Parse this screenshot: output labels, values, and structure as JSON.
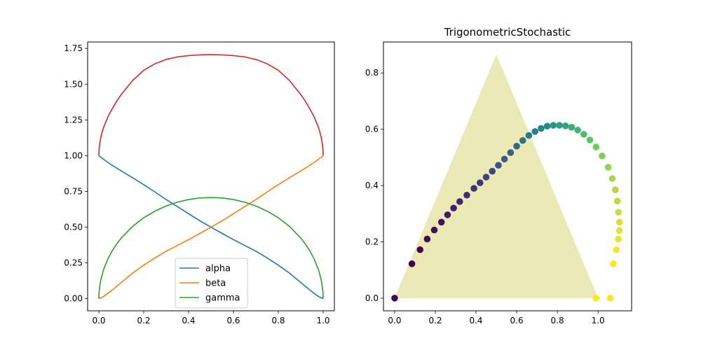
{
  "chart_data": [
    {
      "type": "line",
      "title": "",
      "xlabel": "",
      "ylabel": "",
      "xlim": [
        -0.05,
        1.05
      ],
      "ylim": [
        -0.085,
        1.795
      ],
      "xticks": [
        0.0,
        0.2,
        0.4,
        0.6,
        0.8,
        1.0
      ],
      "yticks": [
        0.0,
        0.25,
        0.5,
        0.75,
        1.0,
        1.25,
        1.5,
        1.75
      ],
      "xtick_labels": [
        "0.0",
        "0.2",
        "0.4",
        "0.6",
        "0.8",
        "1.0"
      ],
      "ytick_labels": [
        "0.00",
        "0.25",
        "0.50",
        "0.75",
        "1.00",
        "1.25",
        "1.50",
        "1.75"
      ],
      "grid": false,
      "legend_position": "lower-center",
      "x": [
        0.0,
        0.001,
        0.005,
        0.01,
        0.02,
        0.04,
        0.06,
        0.08,
        0.1,
        0.15,
        0.2,
        0.25,
        0.3,
        0.35,
        0.4,
        0.45,
        0.5,
        0.55,
        0.6,
        0.65,
        0.7,
        0.75,
        0.8,
        0.85,
        0.9,
        0.92,
        0.94,
        0.96,
        0.98,
        0.99,
        0.995,
        0.999,
        1.0
      ],
      "series": [
        {
          "name": "alpha",
          "color": "#1f77b4",
          "values": [
            1.0,
            0.998,
            0.994,
            0.988,
            0.976,
            0.953,
            0.932,
            0.912,
            0.893,
            0.846,
            0.797,
            0.746,
            0.693,
            0.644,
            0.594,
            0.545,
            0.5,
            0.456,
            0.413,
            0.372,
            0.332,
            0.285,
            0.234,
            0.178,
            0.113,
            0.087,
            0.061,
            0.037,
            0.014,
            0.007,
            0.003,
            0.001,
            0.0
          ]
        },
        {
          "name": "beta",
          "color": "#ff7f0e",
          "values": [
            0.0,
            0.001,
            0.003,
            0.007,
            0.014,
            0.037,
            0.061,
            0.087,
            0.113,
            0.178,
            0.234,
            0.285,
            0.332,
            0.372,
            0.413,
            0.456,
            0.5,
            0.545,
            0.594,
            0.644,
            0.693,
            0.746,
            0.797,
            0.846,
            0.893,
            0.912,
            0.932,
            0.953,
            0.976,
            0.988,
            0.994,
            0.998,
            1.0
          ]
        },
        {
          "name": "gamma",
          "color": "#2ca02c",
          "values": [
            0.0,
            0.044,
            0.099,
            0.14,
            0.198,
            0.277,
            0.336,
            0.384,
            0.424,
            0.505,
            0.566,
            0.612,
            0.648,
            0.675,
            0.693,
            0.704,
            0.707,
            0.704,
            0.693,
            0.675,
            0.648,
            0.612,
            0.566,
            0.505,
            0.424,
            0.384,
            0.336,
            0.277,
            0.198,
            0.14,
            0.099,
            0.044,
            0.0
          ]
        },
        {
          "name": "",
          "color": "#d62728",
          "values": [
            1.0,
            1.043,
            1.096,
            1.136,
            1.194,
            1.27,
            1.329,
            1.382,
            1.428,
            1.525,
            1.597,
            1.643,
            1.673,
            1.691,
            1.7,
            1.705,
            1.707,
            1.705,
            1.7,
            1.691,
            1.673,
            1.643,
            1.597,
            1.525,
            1.428,
            1.382,
            1.329,
            1.27,
            1.194,
            1.136,
            1.096,
            1.043,
            1.0
          ]
        }
      ]
    },
    {
      "type": "scatter",
      "title": "TrigonometricStochastic",
      "xlabel": "",
      "ylabel": "",
      "xlim": [
        -0.055,
        1.165
      ],
      "ylim": [
        -0.045,
        0.91
      ],
      "xticks": [
        0.0,
        0.2,
        0.4,
        0.6,
        0.8,
        1.0
      ],
      "yticks": [
        0.0,
        0.2,
        0.4,
        0.6,
        0.8
      ],
      "xtick_labels": [
        "0.0",
        "0.2",
        "0.4",
        "0.6",
        "0.8",
        "1.0"
      ],
      "ytick_labels": [
        "0.0",
        "0.2",
        "0.4",
        "0.6",
        "0.8"
      ],
      "grid": false,
      "triangle": {
        "vertices": [
          [
            0.0,
            0.0
          ],
          [
            1.0,
            0.0
          ],
          [
            0.5,
            0.866
          ]
        ],
        "color": "#ebe9b6"
      },
      "colormap": "viridis",
      "points": {
        "x": [
          0.0,
          0.085,
          0.125,
          0.16,
          0.195,
          0.23,
          0.26,
          0.29,
          0.32,
          0.355,
          0.39,
          0.42,
          0.45,
          0.48,
          0.51,
          0.54,
          0.57,
          0.6,
          0.63,
          0.66,
          0.69,
          0.72,
          0.75,
          0.78,
          0.81,
          0.84,
          0.87,
          0.9,
          0.93,
          0.96,
          0.99,
          1.02,
          1.05,
          1.07,
          1.085,
          1.095,
          1.1,
          1.105,
          1.105,
          1.1,
          1.09,
          1.075,
          1.06,
          0.99
        ],
        "y": [
          0.0,
          0.122,
          0.172,
          0.21,
          0.242,
          0.27,
          0.296,
          0.32,
          0.343,
          0.366,
          0.39,
          0.41,
          0.43,
          0.451,
          0.472,
          0.494,
          0.517,
          0.54,
          0.56,
          0.578,
          0.592,
          0.603,
          0.611,
          0.614,
          0.614,
          0.612,
          0.607,
          0.597,
          0.582,
          0.562,
          0.537,
          0.505,
          0.465,
          0.425,
          0.385,
          0.345,
          0.305,
          0.27,
          0.24,
          0.21,
          0.172,
          0.122,
          0.0,
          0.0
        ],
        "color_values": [
          0.0,
          0.0,
          0.0,
          0.02,
          0.04,
          0.06,
          0.08,
          0.1,
          0.12,
          0.14,
          0.16,
          0.18,
          0.2,
          0.22,
          0.25,
          0.28,
          0.31,
          0.34,
          0.37,
          0.4,
          0.43,
          0.46,
          0.49,
          0.52,
          0.55,
          0.58,
          0.61,
          0.65,
          0.69,
          0.73,
          0.77,
          0.8,
          0.83,
          0.86,
          0.88,
          0.9,
          0.92,
          0.94,
          0.96,
          0.98,
          0.99,
          1.0,
          1.0,
          1.0
        ]
      }
    }
  ]
}
